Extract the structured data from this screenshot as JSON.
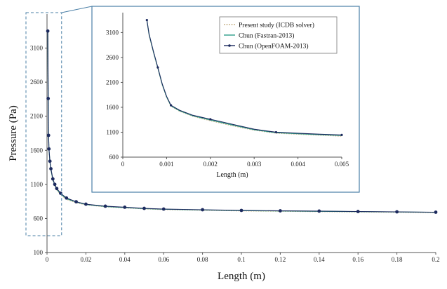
{
  "chart_data": [
    {
      "id": "main",
      "type": "line",
      "xlabel": "Length (m)",
      "ylabel": "Pressure (Pa)",
      "xlim": [
        0,
        0.2
      ],
      "ylim": [
        100,
        3600
      ],
      "x_ticks": [
        "0",
        "0.02",
        "0.04",
        "0.06",
        "0.08",
        "0.1",
        "0.12",
        "0.14",
        "0.16",
        "0.18",
        "0.2"
      ],
      "y_ticks": [
        "100",
        "600",
        "1100",
        "1600",
        "2100",
        "2600",
        "3100"
      ],
      "series": [
        {
          "name": "Present study (ICDB solver)",
          "color": "#c8b48a",
          "marker": "none",
          "x": [
            0.0004,
            0.0006,
            0.0008,
            0.001,
            0.0015,
            0.002,
            0.003,
            0.004,
            0.005,
            0.007,
            0.01,
            0.015,
            0.02,
            0.03,
            0.04,
            0.05,
            0.06,
            0.08,
            0.1,
            0.12,
            0.14,
            0.16,
            0.18,
            0.2
          ],
          "y": [
            3350,
            2350,
            1800,
            1600,
            1420,
            1310,
            1160,
            1080,
            1020,
            950,
            880,
            830,
            800,
            770,
            755,
            740,
            730,
            720,
            710,
            705,
            700,
            695,
            690,
            685
          ]
        },
        {
          "name": "Chun (Fastran-2013)",
          "color": "#2e9e8a",
          "marker": "none",
          "x": [
            0.0004,
            0.0006,
            0.0008,
            0.001,
            0.0015,
            0.002,
            0.003,
            0.004,
            0.005,
            0.007,
            0.01,
            0.015,
            0.02,
            0.03,
            0.04,
            0.05,
            0.06,
            0.08,
            0.1,
            0.12,
            0.14,
            0.16,
            0.18,
            0.2
          ],
          "y": [
            3350,
            2350,
            1810,
            1610,
            1430,
            1320,
            1170,
            1090,
            1030,
            960,
            890,
            840,
            805,
            775,
            760,
            745,
            735,
            725,
            715,
            710,
            705,
            700,
            695,
            690
          ]
        },
        {
          "name": "Chun (OpenFOAM-2013)",
          "color": "#1c2a5e",
          "marker": "circle",
          "x": [
            0.0004,
            0.0006,
            0.0008,
            0.001,
            0.0015,
            0.002,
            0.003,
            0.004,
            0.005,
            0.007,
            0.01,
            0.015,
            0.02,
            0.03,
            0.04,
            0.05,
            0.06,
            0.08,
            0.1,
            0.12,
            0.14,
            0.16,
            0.18,
            0.2
          ],
          "y": [
            3350,
            2360,
            1820,
            1620,
            1440,
            1330,
            1180,
            1100,
            1040,
            970,
            900,
            845,
            810,
            780,
            765,
            748,
            738,
            728,
            718,
            712,
            708,
            702,
            697,
            692
          ]
        }
      ]
    },
    {
      "id": "inset",
      "type": "line",
      "xlabel": "Length (m)",
      "ylabel": "",
      "xlim": [
        0,
        0.005
      ],
      "ylim": [
        600,
        3500
      ],
      "x_ticks": [
        "0",
        "0.001",
        "0.002",
        "0.003",
        "0.004",
        "0.005"
      ],
      "y_ticks": [
        "600",
        "1100",
        "1600",
        "2100",
        "2600",
        "3100"
      ],
      "legend": "top-right",
      "series": [
        {
          "name": "Present study (ICDB solver)",
          "color": "#c8b48a",
          "marker": "none",
          "x": [
            0.00055,
            0.0006,
            0.0007,
            0.0008,
            0.0009,
            0.001,
            0.0011,
            0.0013,
            0.0016,
            0.002,
            0.0025,
            0.003,
            0.0035,
            0.004,
            0.0045,
            0.005
          ],
          "y": [
            3350,
            3050,
            2700,
            2380,
            2050,
            1800,
            1620,
            1520,
            1420,
            1330,
            1230,
            1140,
            1080,
            1060,
            1040,
            1020
          ]
        },
        {
          "name": "Chun (Fastran-2013)",
          "color": "#2e9e8a",
          "marker": "none",
          "x": [
            0.00055,
            0.0006,
            0.0007,
            0.0008,
            0.0009,
            0.001,
            0.0011,
            0.0013,
            0.0016,
            0.002,
            0.0025,
            0.003,
            0.0035,
            0.004,
            0.0045,
            0.005
          ],
          "y": [
            3350,
            3060,
            2710,
            2390,
            2060,
            1810,
            1630,
            1530,
            1430,
            1345,
            1245,
            1150,
            1090,
            1070,
            1050,
            1035
          ]
        },
        {
          "name": "Chun (OpenFOAM-2013)",
          "color": "#1c2a5e",
          "marker": "circle",
          "x": [
            0.00055,
            0.0006,
            0.0007,
            0.0008,
            0.0009,
            0.001,
            0.0011,
            0.0013,
            0.0016,
            0.002,
            0.0025,
            0.003,
            0.0035,
            0.004,
            0.0045,
            0.005
          ],
          "y": [
            3350,
            3070,
            2720,
            2400,
            2070,
            1820,
            1640,
            1540,
            1440,
            1360,
            1260,
            1160,
            1100,
            1080,
            1060,
            1045
          ]
        }
      ]
    }
  ]
}
